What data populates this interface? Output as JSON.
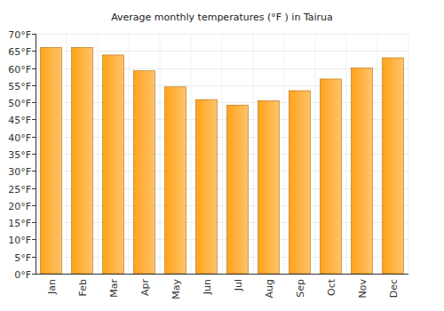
{
  "chart_data": {
    "type": "bar",
    "title": "Average monthly temperatures (°F ) in Tairua",
    "categories": [
      "Jan",
      "Feb",
      "Mar",
      "Apr",
      "May",
      "Jun",
      "Jul",
      "Aug",
      "Sep",
      "Oct",
      "Nov",
      "Dec"
    ],
    "values": [
      66,
      66,
      63.8,
      59.2,
      54.5,
      50.8,
      49.2,
      50.5,
      53.4,
      56.8,
      60,
      63
    ],
    "color": "#ffa31a",
    "ylim": [
      0,
      70
    ],
    "yticks": [
      {
        "value": 0,
        "label": "0°F"
      },
      {
        "value": 5,
        "label": "5°F"
      },
      {
        "value": 10,
        "label": "10°F"
      },
      {
        "value": 15,
        "label": "15°F"
      },
      {
        "value": 20,
        "label": "20°F"
      },
      {
        "value": 25,
        "label": "25°F"
      },
      {
        "value": 30,
        "label": "30°F"
      },
      {
        "value": 35,
        "label": "35°F"
      },
      {
        "value": 40,
        "label": "40°F"
      },
      {
        "value": 45,
        "label": "45°F"
      },
      {
        "value": 50,
        "label": "50°F"
      },
      {
        "value": 55,
        "label": "55°F"
      },
      {
        "value": 60,
        "label": "60°F"
      },
      {
        "value": 65,
        "label": "65°F"
      },
      {
        "value": 70,
        "label": "70°F"
      }
    ],
    "grid": true
  }
}
